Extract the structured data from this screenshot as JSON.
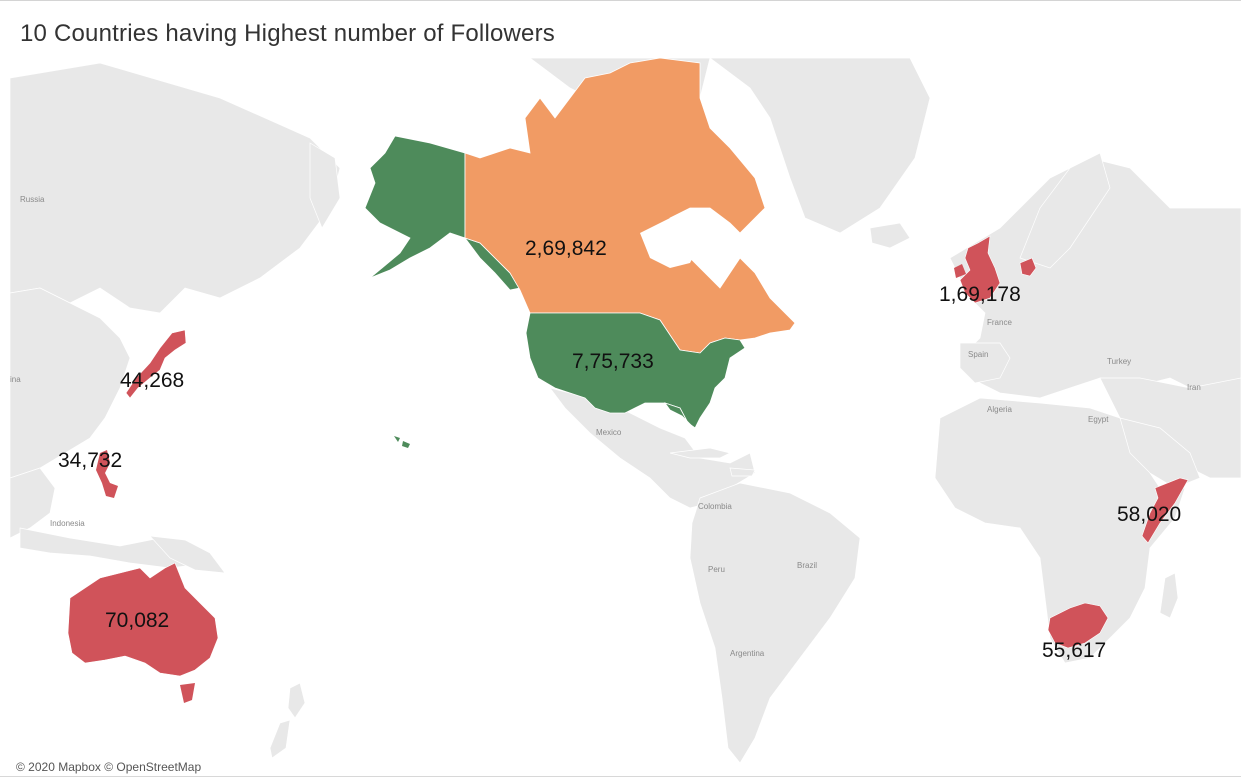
{
  "title": "10 Countries having Highest number of Followers",
  "attribution": "© 2020 Mapbox © OpenStreetMap",
  "colors": {
    "land": "#e8e8e8",
    "border": "#ffffff",
    "water": "#ffffff",
    "green": "#4e8b5b",
    "orange": "#f19b64",
    "red": "#d0535a"
  },
  "place_labels": {
    "russia": "Russia",
    "china": "ina",
    "indonesia": "Indonesia",
    "mexico": "Mexico",
    "colombia": "Colombia",
    "peru": "Peru",
    "brazil": "Brazil",
    "argentina": "Argentina",
    "france": "France",
    "spain": "Spain",
    "turkey": "Turkey",
    "iran": "Iran",
    "algeria": "Algeria",
    "egypt": "Egypt"
  },
  "countries": [
    {
      "key": "united-states",
      "value": "7,75,733",
      "color": "green"
    },
    {
      "key": "canada",
      "value": "2,69,842",
      "color": "orange"
    },
    {
      "key": "united-kingdom",
      "value": "1,69,178",
      "color": "red"
    },
    {
      "key": "australia",
      "value": "70,082",
      "color": "red"
    },
    {
      "key": "somalia",
      "value": "58,020",
      "color": "red"
    },
    {
      "key": "south-africa",
      "value": "55,617",
      "color": "red"
    },
    {
      "key": "japan",
      "value": "44,268",
      "color": "red"
    },
    {
      "key": "philippines",
      "value": "34,732",
      "color": "red"
    }
  ]
}
